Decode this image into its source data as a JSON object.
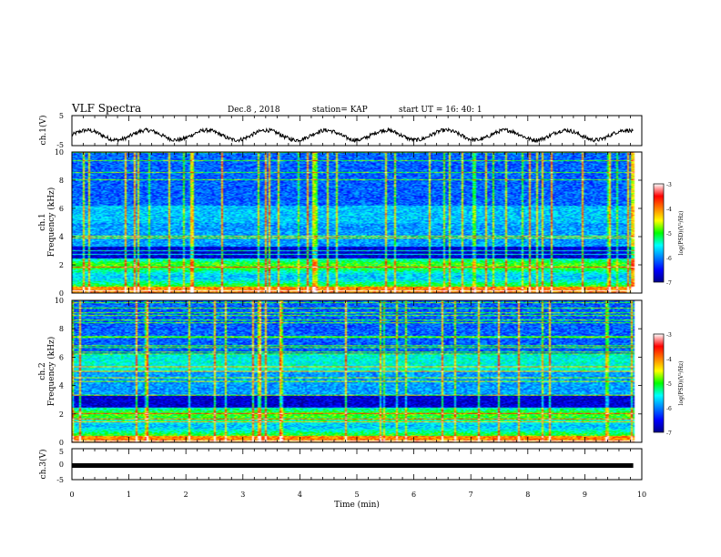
{
  "header": {
    "title": "VLF Spectra",
    "date": "Dec.8 , 2018",
    "station": "station= KAP",
    "start": "start UT = 16: 40: 1"
  },
  "panels": {
    "ch1_wave_label": "ch.1(V)",
    "ch1_spec_label1": "ch.1",
    "ch1_spec_label2": "Frequency (kHz)",
    "ch2_spec_label1": "ch.2",
    "ch2_spec_label2": "Frequency (kHz)",
    "ch3_wave_label": "ch.3(V)",
    "colorbar_label": "log(PSD)(V²/Hz)"
  },
  "chart_data": [
    {
      "type": "line",
      "name": "ch1-waveform",
      "ylabel": "ch.1(V)",
      "xlim": [
        0,
        10
      ],
      "ylim": [
        -5,
        5
      ],
      "yticks": [
        "5",
        "-5"
      ],
      "x_extent": [
        0,
        9.85
      ],
      "mean": -1.5,
      "amplitude": 1.8
    },
    {
      "type": "heatmap",
      "name": "ch1-spectrogram",
      "ylabel": "Frequency (kHz)",
      "xlim": [
        0,
        10
      ],
      "ylim": [
        0,
        10
      ],
      "yticks": [
        "0",
        "2",
        "4",
        "6",
        "8",
        "10"
      ],
      "x_extent": [
        0,
        9.85
      ],
      "colorscale": "log(PSD)(V²/Hz)",
      "crange": [
        -7,
        -3
      ],
      "color_ticks": [
        "-3",
        "-4",
        "-5",
        "-6",
        "-7"
      ]
    },
    {
      "type": "heatmap",
      "name": "ch2-spectrogram",
      "ylabel": "Frequency (kHz)",
      "xlim": [
        0,
        10
      ],
      "ylim": [
        0,
        10
      ],
      "yticks": [
        "0",
        "2",
        "4",
        "6",
        "8",
        "10"
      ],
      "x_extent": [
        0,
        9.85
      ],
      "colorscale": "log(PSD)(V²/Hz)",
      "crange": [
        -7,
        -3
      ],
      "color_ticks": [
        "-3",
        "-4",
        "-5",
        "-6",
        "-7"
      ]
    },
    {
      "type": "line",
      "name": "ch3-waveform",
      "ylabel": "ch.3(V)",
      "xlim": [
        0,
        10
      ],
      "ylim": [
        -5,
        5
      ],
      "yticks": [
        "5",
        "0",
        "-5"
      ],
      "x_extent": [
        0,
        9.85
      ],
      "mean": 0
    }
  ],
  "xaxis": {
    "label": "Time (min)",
    "ticks": [
      "0",
      "1",
      "2",
      "3",
      "4",
      "5",
      "6",
      "7",
      "8",
      "9",
      "10"
    ]
  },
  "colors": {
    "scale": [
      "#00008b",
      "#0000ff",
      "#0080ff",
      "#00ffff",
      "#00ff00",
      "#ffff00",
      "#ff8000",
      "#ff0000",
      "#ffffff"
    ]
  }
}
